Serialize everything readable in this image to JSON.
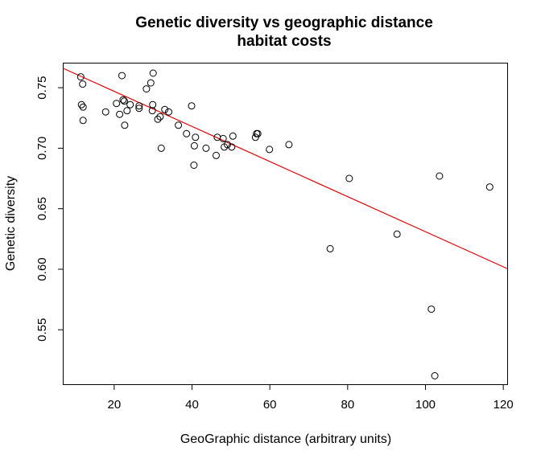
{
  "chart_data": {
    "type": "scatter",
    "title_lines": [
      "Genetic diversity vs geographic distance",
      "habitat costs"
    ],
    "xlabel": "GeoGraphic distance (arbitrary units)",
    "ylabel": "Genetic diversity",
    "xlim": [
      7,
      121
    ],
    "ylim": [
      0.505,
      0.77
    ],
    "xticks": [
      20,
      40,
      60,
      80,
      100,
      120
    ],
    "xtick_labels": [
      "20",
      "40",
      "60",
      "80",
      "100",
      "120"
    ],
    "yticks": [
      0.55,
      0.6,
      0.65,
      0.7,
      0.75
    ],
    "ytick_labels": [
      "0.55",
      "0.60",
      "0.65",
      "0.70",
      "0.75"
    ],
    "grid": false,
    "fit_line": {
      "color": "#e00000",
      "intercept": 0.776,
      "slope": -0.00145
    },
    "points": [
      {
        "x": 11.4,
        "y": 0.759
      },
      {
        "x": 11.9,
        "y": 0.753
      },
      {
        "x": 11.6,
        "y": 0.736
      },
      {
        "x": 12.0,
        "y": 0.734
      },
      {
        "x": 12.0,
        "y": 0.723
      },
      {
        "x": 17.8,
        "y": 0.73
      },
      {
        "x": 20.6,
        "y": 0.737
      },
      {
        "x": 21.4,
        "y": 0.728
      },
      {
        "x": 22.0,
        "y": 0.76
      },
      {
        "x": 22.3,
        "y": 0.74
      },
      {
        "x": 22.6,
        "y": 0.739
      },
      {
        "x": 22.7,
        "y": 0.719
      },
      {
        "x": 23.3,
        "y": 0.731
      },
      {
        "x": 24.1,
        "y": 0.736
      },
      {
        "x": 26.4,
        "y": 0.735
      },
      {
        "x": 26.4,
        "y": 0.733
      },
      {
        "x": 28.3,
        "y": 0.749
      },
      {
        "x": 29.4,
        "y": 0.754
      },
      {
        "x": 29.8,
        "y": 0.731
      },
      {
        "x": 29.9,
        "y": 0.736
      },
      {
        "x": 30.0,
        "y": 0.762
      },
      {
        "x": 31.2,
        "y": 0.724
      },
      {
        "x": 31.8,
        "y": 0.726
      },
      {
        "x": 32.1,
        "y": 0.7
      },
      {
        "x": 33.0,
        "y": 0.732
      },
      {
        "x": 34.0,
        "y": 0.73
      },
      {
        "x": 36.5,
        "y": 0.719
      },
      {
        "x": 38.6,
        "y": 0.712
      },
      {
        "x": 39.9,
        "y": 0.735
      },
      {
        "x": 40.5,
        "y": 0.686
      },
      {
        "x": 40.6,
        "y": 0.702
      },
      {
        "x": 40.9,
        "y": 0.709
      },
      {
        "x": 43.6,
        "y": 0.7
      },
      {
        "x": 46.2,
        "y": 0.694
      },
      {
        "x": 46.5,
        "y": 0.709
      },
      {
        "x": 48.0,
        "y": 0.708
      },
      {
        "x": 48.3,
        "y": 0.701
      },
      {
        "x": 49.1,
        "y": 0.703
      },
      {
        "x": 50.2,
        "y": 0.701
      },
      {
        "x": 50.5,
        "y": 0.71
      },
      {
        "x": 56.3,
        "y": 0.709
      },
      {
        "x": 56.6,
        "y": 0.712
      },
      {
        "x": 56.9,
        "y": 0.712
      },
      {
        "x": 59.9,
        "y": 0.699
      },
      {
        "x": 64.9,
        "y": 0.703
      },
      {
        "x": 75.5,
        "y": 0.617
      },
      {
        "x": 80.4,
        "y": 0.675
      },
      {
        "x": 92.7,
        "y": 0.629
      },
      {
        "x": 101.5,
        "y": 0.567
      },
      {
        "x": 102.4,
        "y": 0.512
      },
      {
        "x": 103.6,
        "y": 0.677
      },
      {
        "x": 116.5,
        "y": 0.668
      }
    ]
  }
}
